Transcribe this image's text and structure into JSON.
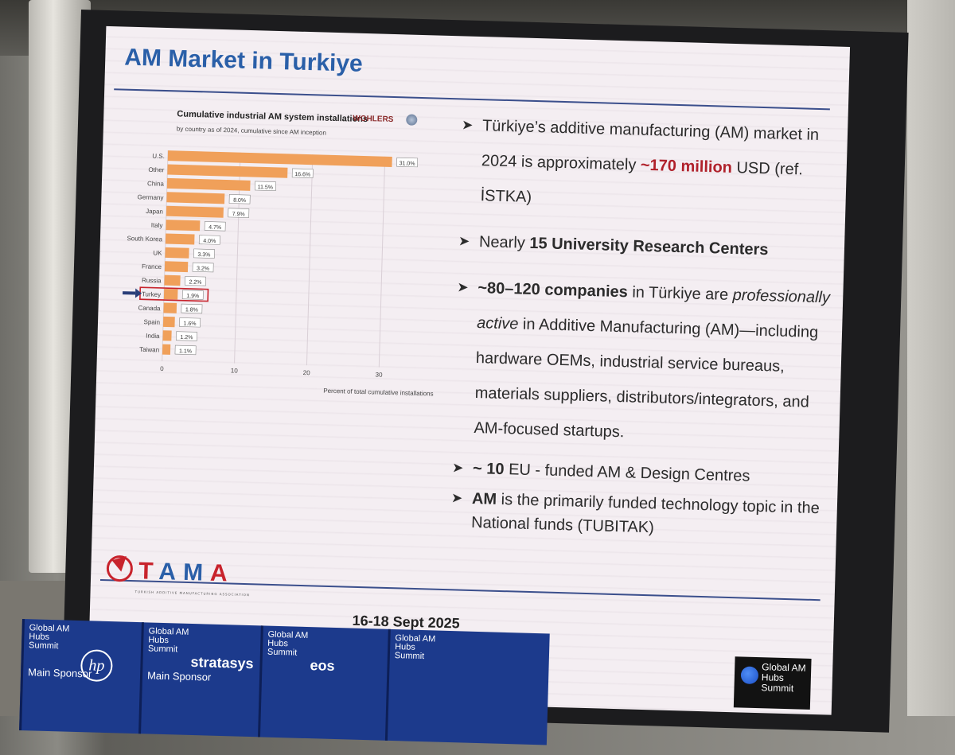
{
  "slide": {
    "title": "AM Market in Turkiye",
    "footer_date": "16-18 Sept 2025",
    "tama": {
      "letters": [
        "T",
        "A",
        "M",
        "A"
      ],
      "subtitle": "TURKISH ADDITIVE MANUFACTURING ASSOCIATION"
    },
    "summit_badge": "Global AM Hubs Summit"
  },
  "bullets": [
    {
      "parts": [
        {
          "t": "Türkiye’s additive manufacturing (AM) market in 2024 is approximately ",
          "s": ""
        },
        {
          "t": "~170 million",
          "s": "red"
        },
        {
          "t": " USD (ref. İSTKA)",
          "s": ""
        }
      ]
    },
    {
      "parts": [
        {
          "t": "Nearly ",
          "s": ""
        },
        {
          "t": "15 University Research Centers",
          "s": "strong"
        }
      ]
    },
    {
      "parts": [
        {
          "t": "~80–120 companies",
          "s": "strong"
        },
        {
          "t": " in Türkiye are ",
          "s": ""
        },
        {
          "t": "professionally active",
          "s": "ital"
        },
        {
          "t": " in Additive Manufacturing (AM)—including hardware OEMs, industrial service bureaus, materials suppliers, distributors/integrators, and AM-focused startups.",
          "s": ""
        }
      ]
    },
    {
      "parts": [
        {
          "t": "~ 10",
          "s": "strong"
        },
        {
          "t": " EU - funded AM & Design Centres",
          "s": ""
        }
      ]
    },
    {
      "parts": [
        {
          "t": "AM",
          "s": "strong"
        },
        {
          "t": " is the primarily funded technology topic in the National funds (TUBITAK)",
          "s": ""
        }
      ]
    }
  ],
  "chart_logos": {
    "wohlers": "WOHLERS"
  },
  "chart_data": {
    "type": "bar",
    "orientation": "horizontal",
    "title": "Cumulative industrial AM system installations",
    "subtitle": "by country as of 2024, cumulative since AM inception",
    "xlabel": "Percent of total cumulative installations",
    "categories": [
      "U.S.",
      "Other",
      "China",
      "Germany",
      "Japan",
      "Italy",
      "South Korea",
      "UK",
      "France",
      "Russia",
      "Turkey",
      "Canada",
      "Spain",
      "India",
      "Taiwan"
    ],
    "values": [
      31.0,
      16.6,
      11.5,
      8.0,
      7.9,
      4.7,
      4.0,
      3.3,
      3.2,
      2.2,
      1.9,
      1.8,
      1.6,
      1.2,
      1.1
    ],
    "value_labels": [
      "31.0%",
      "16.6%",
      "11.5%",
      "8.0%",
      "7.9%",
      "4.7%",
      "4.0%",
      "3.3%",
      "3.2%",
      "2.2%",
      "1.9%",
      "1.8%",
      "1.6%",
      "1.2%",
      "1.1%"
    ],
    "xticks": [
      0,
      10,
      20,
      30
    ],
    "xlim": [
      0,
      33
    ],
    "highlight_category": "Turkey",
    "bar_color": "#f0a05a",
    "highlight_color": "#c8232c",
    "grid": true,
    "legend": "none"
  },
  "banner": {
    "panels": [
      {
        "header": "Global AM Hubs Summit",
        "main": "Main Sponsor",
        "brand": "hp"
      },
      {
        "header": "Global AM Hubs Summit",
        "main": "Main Sponsor",
        "brand": "stratasys"
      },
      {
        "header": "Global AM Hubs Summit",
        "main": "",
        "brand": "eos"
      },
      {
        "header": "Global AM Hubs Summit",
        "main": "",
        "brand": ""
      }
    ]
  }
}
